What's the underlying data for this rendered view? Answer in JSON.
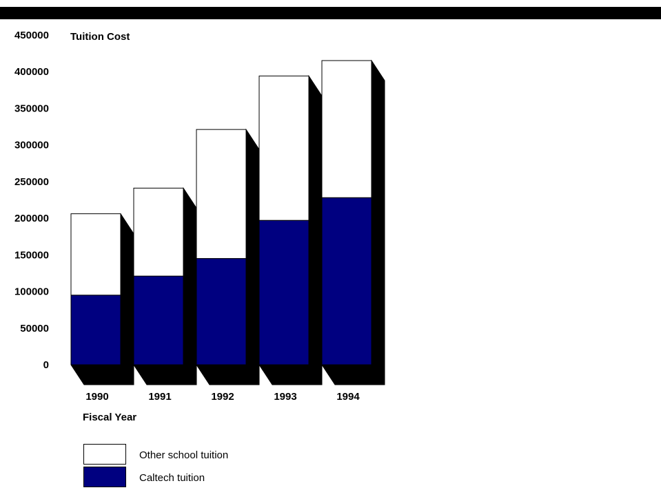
{
  "chart_data": {
    "type": "bar",
    "stacked": true,
    "three_d": true,
    "ylabel": "Tuition Cost",
    "xlabel": "Fiscal Year",
    "ylim": [
      0,
      450000
    ],
    "yticks": [
      0,
      50000,
      100000,
      150000,
      200000,
      250000,
      300000,
      350000,
      400000,
      450000
    ],
    "ytick_labels": [
      "0",
      "50000",
      "100000",
      "150000",
      "200000",
      "250000",
      "300000",
      "350000",
      "400000",
      "450000"
    ],
    "categories": [
      "1990",
      "1991",
      "1992",
      "1993",
      "1994"
    ],
    "series": [
      {
        "name": "Caltech tuition",
        "values": [
          95000,
          121000,
          145000,
          197000,
          228000
        ],
        "color": "#000080"
      },
      {
        "name": "Other school tuition",
        "values": [
          111000,
          120000,
          176000,
          197000,
          187000
        ],
        "color": "#ffffff"
      }
    ],
    "legend_position": "bottom-left",
    "grid": false
  },
  "legend": {
    "items": [
      {
        "label": "Other school tuition",
        "color": "#ffffff"
      },
      {
        "label": "Caltech tuition",
        "color": "#000080"
      }
    ]
  },
  "colors": {
    "shadow": "#000000",
    "top_bar": "#000000"
  }
}
